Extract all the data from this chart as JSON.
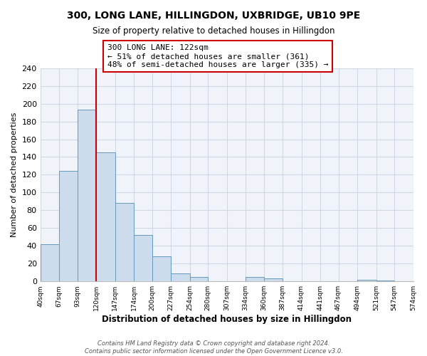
{
  "title": "300, LONG LANE, HILLINGDON, UXBRIDGE, UB10 9PE",
  "subtitle": "Size of property relative to detached houses in Hillingdon",
  "xlabel": "Distribution of detached houses by size in Hillingdon",
  "ylabel": "Number of detached properties",
  "bar_edges": [
    40,
    67,
    93,
    120,
    147,
    174,
    200,
    227,
    254,
    280,
    307,
    334,
    360,
    387,
    414,
    441,
    467,
    494,
    521,
    547,
    574
  ],
  "bar_heights": [
    42,
    124,
    193,
    145,
    88,
    52,
    28,
    9,
    5,
    0,
    0,
    5,
    3,
    0,
    0,
    0,
    0,
    2,
    1,
    0
  ],
  "bar_color": "#ccdcec",
  "bar_edge_color": "#6699bb",
  "property_line_x": 120,
  "property_line_color": "#cc0000",
  "annotation_text": "300 LONG LANE: 122sqm\n← 51% of detached houses are smaller (361)\n48% of semi-detached houses are larger (335) →",
  "annotation_box_color": "#ffffff",
  "annotation_box_edge_color": "#cc0000",
  "ylim": [
    0,
    240
  ],
  "yticks": [
    0,
    20,
    40,
    60,
    80,
    100,
    120,
    140,
    160,
    180,
    200,
    220,
    240
  ],
  "tick_labels": [
    "40sqm",
    "67sqm",
    "93sqm",
    "120sqm",
    "147sqm",
    "174sqm",
    "200sqm",
    "227sqm",
    "254sqm",
    "280sqm",
    "307sqm",
    "334sqm",
    "360sqm",
    "387sqm",
    "414sqm",
    "441sqm",
    "467sqm",
    "494sqm",
    "521sqm",
    "547sqm",
    "574sqm"
  ],
  "footer_text": "Contains HM Land Registry data © Crown copyright and database right 2024.\nContains public sector information licensed under the Open Government Licence v3.0.",
  "background_color": "#ffffff",
  "plot_bg_color": "#f0f4fa",
  "grid_color": "#d0d8e8"
}
